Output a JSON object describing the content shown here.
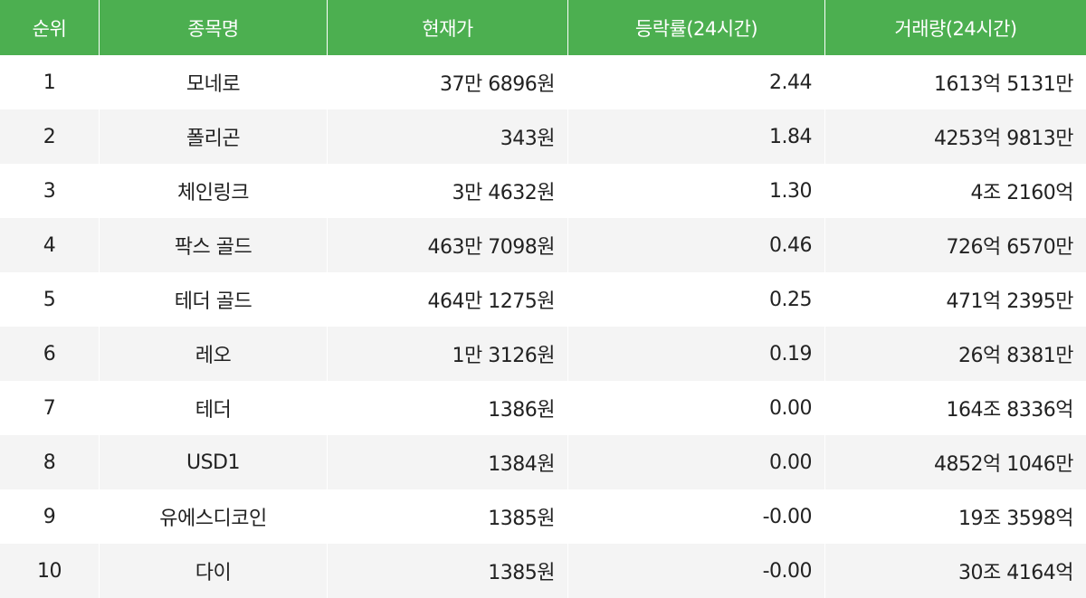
{
  "header": {
    "rank": "순위",
    "name": "종목명",
    "price": "현재가",
    "change": "등락률(24시간)",
    "volume": "거래량(24시간)"
  },
  "rows": [
    {
      "rank": "1",
      "name": "모네로",
      "price": "37만 6896원",
      "change": "2.44",
      "volume": "1613억 5131만"
    },
    {
      "rank": "2",
      "name": "폴리곤",
      "price": "343원",
      "change": "1.84",
      "volume": "4253억 9813만"
    },
    {
      "rank": "3",
      "name": "체인링크",
      "price": "3만 4632원",
      "change": "1.30",
      "volume": "4조 2160억"
    },
    {
      "rank": "4",
      "name": "팍스 골드",
      "price": "463만 7098원",
      "change": "0.46",
      "volume": "726억 6570만"
    },
    {
      "rank": "5",
      "name": "테더 골드",
      "price": "464만 1275원",
      "change": "0.25",
      "volume": "471억 2395만"
    },
    {
      "rank": "6",
      "name": "레오",
      "price": "1만 3126원",
      "change": "0.19",
      "volume": "26억 8381만"
    },
    {
      "rank": "7",
      "name": "테더",
      "price": "1386원",
      "change": "0.00",
      "volume": "164조 8336억"
    },
    {
      "rank": "8",
      "name": "USD1",
      "price": "1384원",
      "change": "0.00",
      "volume": "4852억 1046만"
    },
    {
      "rank": "9",
      "name": "유에스디코인",
      "price": "1385원",
      "change": "-0.00",
      "volume": "19조 3598억"
    },
    {
      "rank": "10",
      "name": "다이",
      "price": "1385원",
      "change": "-0.00",
      "volume": "30조 4164억"
    }
  ],
  "colors": {
    "header_bg": "#4caf50",
    "alt_row_bg": "#f4f4f4"
  }
}
